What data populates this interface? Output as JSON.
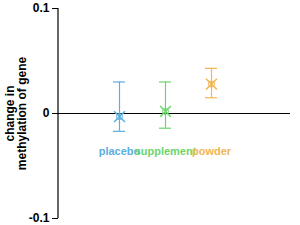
{
  "chart_data": {
    "type": "scatter",
    "y_label": "change in methylation of gene",
    "categories": [
      "placebo",
      "supplement",
      "powder"
    ],
    "values": [
      -0.003,
      0.002,
      0.028
    ],
    "error_low": [
      -0.017,
      -0.014,
      0.015
    ],
    "error_high": [
      0.03,
      0.03,
      0.043
    ],
    "colors": [
      "#5aaee0",
      "#6dd46d",
      "#f2b552"
    ],
    "marker": "x",
    "ylim": [
      -0.1,
      0.1
    ],
    "yticks": [
      -0.1,
      0,
      0.1
    ]
  }
}
